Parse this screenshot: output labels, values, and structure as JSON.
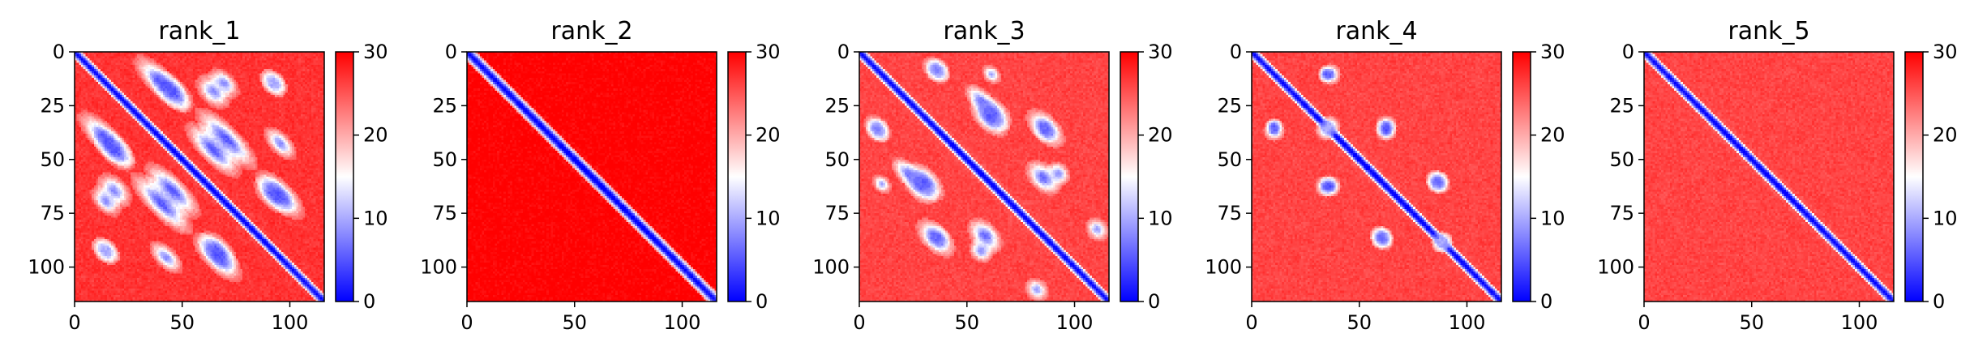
{
  "chart_data": {
    "type": "heatmap",
    "colormap": [
      "#0000ff",
      "#ffffff",
      "#ff0000"
    ],
    "matrix_size": 116,
    "xlim": [
      0,
      116
    ],
    "ylim": [
      116,
      0
    ],
    "x_ticks": [
      0,
      50,
      100
    ],
    "y_ticks": [
      0,
      25,
      50,
      75,
      100
    ],
    "colorbar": {
      "vmin": 0,
      "vmax": 30,
      "ticks": [
        0,
        10,
        20,
        30
      ]
    },
    "panels": [
      {
        "title": "rank_1",
        "diag_width": 4,
        "background": 27,
        "features": [
          {
            "center": [
              40,
              14
            ],
            "along": 14,
            "across": 5,
            "value": 5
          },
          {
            "center": [
              69,
              14
            ],
            "along": 7,
            "across": 4,
            "value": 8
          },
          {
            "center": [
              92,
              14
            ],
            "along": 6,
            "across": 4,
            "value": 10
          },
          {
            "center": [
              18,
              45
            ],
            "along": 10,
            "across": 5,
            "value": 5
          },
          {
            "center": [
              64,
              45
            ],
            "along": 14,
            "across": 5,
            "value": 5
          },
          {
            "center": [
              40,
              70
            ],
            "along": 16,
            "across": 5,
            "value": 5
          },
          {
            "center": [
              92,
              66
            ],
            "along": 9,
            "across": 5,
            "value": 5
          },
          {
            "center": [
              18,
              64
            ],
            "along": 8,
            "across": 5,
            "value": 8
          },
          {
            "center": [
              42,
              95
            ],
            "along": 8,
            "across": 4,
            "value": 8
          },
          {
            "center": [
              66,
              95
            ],
            "along": 12,
            "across": 5,
            "value": 5
          },
          {
            "center": [
              14,
              92
            ],
            "along": 6,
            "across": 4,
            "value": 10
          }
        ]
      },
      {
        "title": "rank_2",
        "diag_width": 5,
        "background": 30,
        "features": []
      },
      {
        "title": "rank_3",
        "diag_width": 4,
        "background": 26,
        "features": [
          {
            "center": [
              35,
              8
            ],
            "along": 6,
            "across": 4,
            "value": 8
          },
          {
            "center": [
              56,
              22
            ],
            "along": 8,
            "across": 4,
            "value": 8
          },
          {
            "center": [
              60,
              30
            ],
            "along": 9,
            "across": 5,
            "value": 5
          },
          {
            "center": [
              86,
              36
            ],
            "along": 5,
            "across": 4,
            "value": 8
          },
          {
            "center": [
              8,
              36
            ],
            "along": 5,
            "across": 4,
            "value": 8
          },
          {
            "center": [
              28,
              62
            ],
            "along": 8,
            "across": 5,
            "value": 6
          },
          {
            "center": [
              85,
              58
            ],
            "along": 8,
            "across": 5,
            "value": 6
          },
          {
            "center": [
              35,
              86
            ],
            "along": 9,
            "across": 5,
            "value": 6
          },
          {
            "center": [
              56,
              92
            ],
            "along": 5,
            "across": 4,
            "value": 8
          },
          {
            "center": [
              110,
              82
            ],
            "along": 5,
            "across": 4,
            "value": 9
          },
          {
            "center": [
              10,
              61
            ],
            "along": 4,
            "across": 3,
            "value": 9
          }
        ]
      },
      {
        "title": "rank_4",
        "diag_width": 4,
        "background": 26,
        "features": [
          {
            "center": [
              36,
              10
            ],
            "along": 4,
            "across": 4,
            "value": 6
          },
          {
            "center": [
              10,
              34
            ],
            "along": 3,
            "across": 3,
            "value": 5
          },
          {
            "center": [
              62,
              34
            ],
            "along": 4,
            "across": 4,
            "value": 6
          },
          {
            "center": [
              36,
              62
            ],
            "along": 4,
            "across": 4,
            "value": 5
          },
          {
            "center": [
              86,
              60
            ],
            "along": 5,
            "across": 4,
            "value": 6
          },
          {
            "center": [
              60,
              86
            ],
            "along": 4,
            "across": 4,
            "value": 6
          },
          {
            "center": [
              34,
              36
            ],
            "along": 4,
            "across": 4,
            "value": 10
          },
          {
            "center": [
              88,
              88
            ],
            "along": 4,
            "across": 4,
            "value": 10
          }
        ]
      },
      {
        "title": "rank_5",
        "diag_width": 4,
        "background": 26,
        "features": []
      }
    ]
  }
}
